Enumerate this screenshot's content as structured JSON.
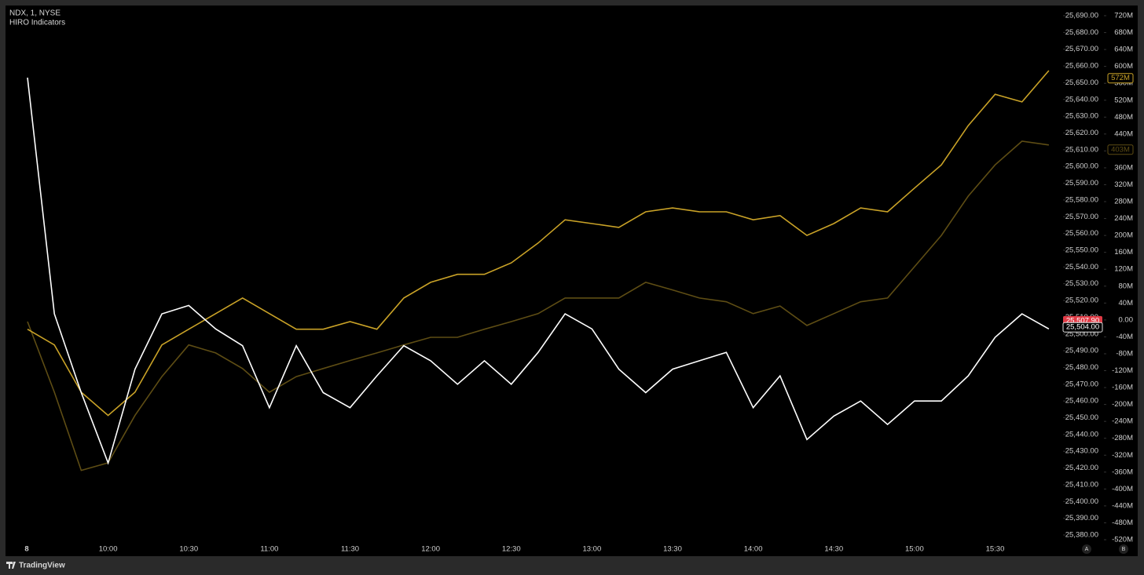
{
  "header": {
    "symbol": "NDX, 1, NYSE",
    "indicator": "HIRO Indicators"
  },
  "footer": {
    "brand": "TradingView",
    "buttons": [
      "A",
      "B"
    ]
  },
  "chart_data": {
    "type": "line",
    "date_label": "8",
    "x": [
      "9:30",
      "9:40",
      "9:50",
      "10:00",
      "10:10",
      "10:20",
      "10:30",
      "10:40",
      "10:50",
      "11:00",
      "11:10",
      "11:20",
      "11:30",
      "11:40",
      "11:50",
      "12:00",
      "12:10",
      "12:20",
      "12:30",
      "12:40",
      "12:50",
      "13:00",
      "13:10",
      "13:20",
      "13:30",
      "13:40",
      "13:50",
      "14:00",
      "14:10",
      "14:20",
      "14:30",
      "14:40",
      "14:50",
      "15:00",
      "15:10",
      "15:20",
      "15:30",
      "15:40",
      "15:50"
    ],
    "xlim": [
      "9:30",
      "15:55"
    ],
    "xticks": [
      "10:00",
      "10:30",
      "11:00",
      "11:30",
      "12:00",
      "12:30",
      "13:00",
      "13:30",
      "14:00",
      "14:30",
      "15:00",
      "15:30"
    ],
    "ylim": [
      25380,
      25690
    ],
    "yticks": [
      {
        "value": 25380,
        "label": "25,380.00"
      },
      {
        "value": 25390,
        "label": "25,390.00"
      },
      {
        "value": 25400,
        "label": "25,400.00"
      },
      {
        "value": 25410,
        "label": "25,410.00"
      },
      {
        "value": 25420,
        "label": "25,420.00"
      },
      {
        "value": 25430,
        "label": "25,430.00"
      },
      {
        "value": 25440,
        "label": "25,440.00"
      },
      {
        "value": 25450,
        "label": "25,450.00"
      },
      {
        "value": 25460,
        "label": "25,460.00"
      },
      {
        "value": 25470,
        "label": "25,470.00"
      },
      {
        "value": 25480,
        "label": "25,480.00"
      },
      {
        "value": 25490,
        "label": "25,490.00"
      },
      {
        "value": 25500,
        "label": "25,500.00"
      },
      {
        "value": 25510,
        "label": "25,510.00"
      },
      {
        "value": 25520,
        "label": "25,520.00"
      },
      {
        "value": 25530,
        "label": "25,530.00"
      },
      {
        "value": 25540,
        "label": "25,540.00"
      },
      {
        "value": 25550,
        "label": "25,550.00"
      },
      {
        "value": 25560,
        "label": "25,560.00"
      },
      {
        "value": 25570,
        "label": "25,570.00"
      },
      {
        "value": 25580,
        "label": "25,580.00"
      },
      {
        "value": 25590,
        "label": "25,590.00"
      },
      {
        "value": 25600,
        "label": "25,600.00"
      },
      {
        "value": 25610,
        "label": "25,610.00"
      },
      {
        "value": 25620,
        "label": "25,620.00"
      },
      {
        "value": 25630,
        "label": "25,630.00"
      },
      {
        "value": 25640,
        "label": "25,640.00"
      },
      {
        "value": 25650,
        "label": "25,650.00"
      },
      {
        "value": 25660,
        "label": "25,660.00"
      },
      {
        "value": 25670,
        "label": "25,670.00"
      },
      {
        "value": 25680,
        "label": "25,680.00"
      },
      {
        "value": 25690,
        "label": "25,690.00"
      }
    ],
    "y2lim": [
      -520,
      720
    ],
    "y2ticks": [
      {
        "value": 720,
        "label": "720M"
      },
      {
        "value": 680,
        "label": "680M"
      },
      {
        "value": 640,
        "label": "640M"
      },
      {
        "value": 600,
        "label": "600M"
      },
      {
        "value": 560,
        "label": "560M"
      },
      {
        "value": 520,
        "label": "520M"
      },
      {
        "value": 480,
        "label": "480M"
      },
      {
        "value": 440,
        "label": "440M"
      },
      {
        "value": 400,
        "label": "400M"
      },
      {
        "value": 360,
        "label": "360M"
      },
      {
        "value": 320,
        "label": "320M"
      },
      {
        "value": 280,
        "label": "280M"
      },
      {
        "value": 240,
        "label": "240M"
      },
      {
        "value": 200,
        "label": "200M"
      },
      {
        "value": 160,
        "label": "160M"
      },
      {
        "value": 120,
        "label": "120M"
      },
      {
        "value": 80,
        "label": "80M"
      },
      {
        "value": 40,
        "label": "40M"
      },
      {
        "value": 0,
        "label": "0.00"
      },
      {
        "value": -40,
        "label": "-40M"
      },
      {
        "value": -80,
        "label": "-80M"
      },
      {
        "value": -120,
        "label": "-120M"
      },
      {
        "value": -160,
        "label": "-160M"
      },
      {
        "value": -200,
        "label": "-200M"
      },
      {
        "value": -240,
        "label": "-240M"
      },
      {
        "value": -280,
        "label": "-280M"
      },
      {
        "value": -320,
        "label": "-320M"
      },
      {
        "value": -360,
        "label": "-360M"
      },
      {
        "value": -400,
        "label": "-400M"
      },
      {
        "value": -440,
        "label": "-440M"
      },
      {
        "value": -480,
        "label": "-480M"
      },
      {
        "value": -520,
        "label": "-520M"
      }
    ],
    "series": [
      {
        "color": "#5e4d14",
        "axis": "y2",
        "values": [
          -4,
          -171,
          -356,
          -338,
          -226,
          -134,
          -59,
          -78,
          -115,
          -171,
          -134,
          -115,
          -96,
          -78,
          -59,
          -41,
          -41,
          -22,
          -4,
          15,
          52,
          52,
          52,
          89,
          71,
          52,
          43,
          15,
          33,
          -13,
          15,
          43,
          52,
          126,
          200,
          293,
          367,
          423,
          414
        ],
        "last": {
          "value": 403,
          "label": "403M"
        }
      },
      {
        "color": "#c9a227",
        "axis": "y2",
        "values": [
          -22,
          -59,
          -171,
          -226,
          -171,
          -59,
          -22,
          15,
          52,
          15,
          -22,
          -22,
          -4,
          -22,
          52,
          89,
          108,
          108,
          135,
          182,
          237,
          228,
          219,
          256,
          265,
          256,
          256,
          237,
          247,
          200,
          228,
          265,
          256,
          312,
          367,
          460,
          534,
          516,
          590
        ],
        "last": {
          "value": 572,
          "label": "572M"
        }
      },
      {
        "color": "#ffffff",
        "values": [
          25653,
          25512,
          25465,
          25423,
          25479,
          25512,
          25517,
          25503,
          25493,
          25456,
          25493,
          25465,
          25456,
          25475,
          25493,
          25484,
          25470,
          25484,
          25470,
          25489,
          25512,
          25503,
          25479,
          25465,
          25479,
          25484,
          25489,
          25456,
          25475,
          25437,
          25451,
          25460,
          25446,
          25460,
          25460,
          25475,
          25498,
          25512,
          25503
        ],
        "last": {
          "value": 25507.9,
          "label": "25,507.90"
        }
      }
    ],
    "price_lines": [
      {
        "value": 25504,
        "label": "25,504.00"
      }
    ]
  }
}
